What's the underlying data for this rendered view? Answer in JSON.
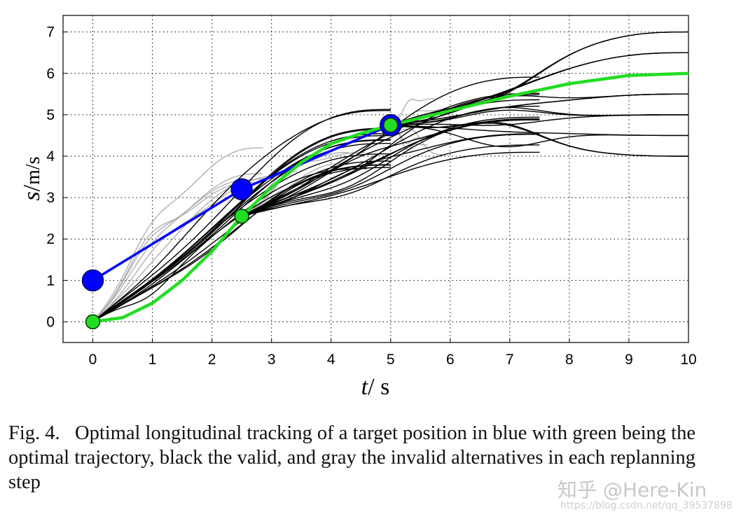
{
  "chart_data": {
    "type": "line",
    "title": "",
    "xlabel_var": "t",
    "xlabel_unit": "s",
    "ylabel_var": "s",
    "ylabel_unit": "m/s",
    "xlim": [
      -0.5,
      10
    ],
    "ylim": [
      -0.5,
      7.4
    ],
    "xticks": [
      "0",
      "1",
      "2",
      "3",
      "4",
      "5",
      "6",
      "7",
      "8",
      "9",
      "10"
    ],
    "yticks": [
      "0",
      "1",
      "2",
      "3",
      "4",
      "5",
      "6",
      "7"
    ],
    "grid": "dotted",
    "series": [
      {
        "role": "target",
        "color": "#0000ff",
        "points": [
          [
            0,
            1.0
          ],
          [
            2.5,
            3.2
          ],
          [
            5.0,
            4.75
          ]
        ]
      },
      {
        "role": "optimal",
        "color": "#22dd22",
        "points": [
          [
            0,
            0
          ],
          [
            0.5,
            0.1
          ],
          [
            1,
            0.45
          ],
          [
            1.5,
            1.0
          ],
          [
            2,
            1.7
          ],
          [
            2.5,
            2.55
          ],
          [
            3,
            3.25
          ],
          [
            3.5,
            3.85
          ],
          [
            4,
            4.3
          ],
          [
            4.5,
            4.55
          ],
          [
            5,
            4.75
          ],
          [
            6,
            5.1
          ],
          [
            7,
            5.45
          ],
          [
            8,
            5.75
          ],
          [
            9,
            5.95
          ],
          [
            10,
            6.0
          ]
        ]
      },
      {
        "role": "start-markers",
        "color": "#22dd22",
        "points": [
          [
            0,
            0
          ],
          [
            2.5,
            2.55
          ],
          [
            5.0,
            4.75
          ]
        ]
      }
    ],
    "valid_color": "#000000",
    "invalid_color": "#aaaaaa"
  },
  "caption": {
    "label": "Fig. 4.",
    "text": "Optimal longitudinal tracking of a target position in blue with green being the optimal trajectory, black the valid, and gray the invalid alternatives in each replanning step"
  },
  "watermark": {
    "text": "知乎 @Here-Kin",
    "url": "https://blog.csdn.net/qq_39537898"
  }
}
